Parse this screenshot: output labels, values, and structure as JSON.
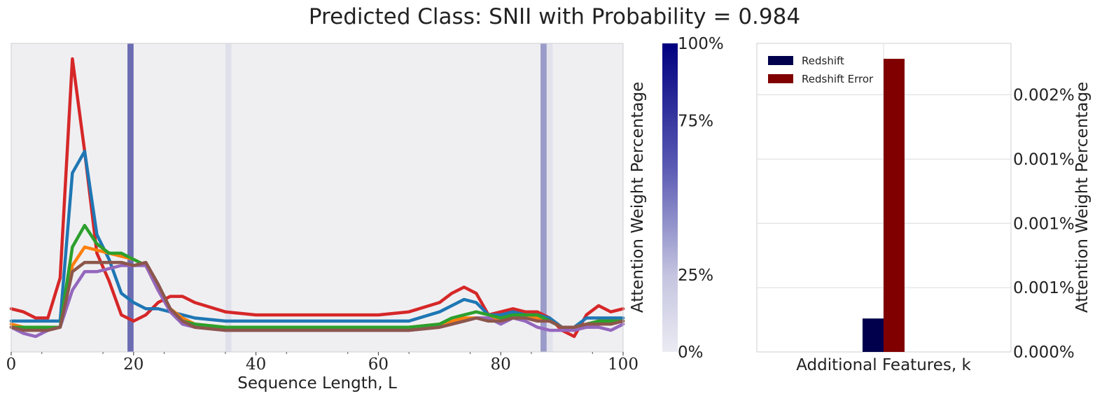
{
  "title": "Predicted Class: SNII with Probability = 0.984",
  "chart_data": [
    {
      "type": "line",
      "xlabel": "Sequence Length, L",
      "ylabel": "",
      "xlim": [
        0,
        100
      ],
      "ylim": [
        0,
        1
      ],
      "x_ticks": [
        "0",
        "20",
        "40",
        "60",
        "80",
        "100"
      ],
      "background": "#efeff2",
      "attention_columns": [
        {
          "x": 19.5,
          "weight": 0.55
        },
        {
          "x": 35.5,
          "weight": 0.06
        },
        {
          "x": 87.0,
          "weight": 0.35
        },
        {
          "x": 88.0,
          "weight": 0.05
        }
      ],
      "x": [
        0,
        2,
        4,
        6,
        8,
        10,
        12,
        14,
        16,
        18,
        20,
        22,
        24,
        26,
        28,
        30,
        35,
        40,
        50,
        60,
        65,
        70,
        72,
        74,
        76,
        78,
        80,
        82,
        84,
        86,
        88,
        90,
        92,
        94,
        96,
        98,
        100
      ],
      "series": [
        {
          "color": "#d62728",
          "values": [
            0.14,
            0.13,
            0.11,
            0.11,
            0.24,
            0.95,
            0.65,
            0.32,
            0.23,
            0.12,
            0.1,
            0.12,
            0.16,
            0.18,
            0.18,
            0.16,
            0.13,
            0.12,
            0.12,
            0.12,
            0.13,
            0.16,
            0.19,
            0.21,
            0.19,
            0.12,
            0.13,
            0.14,
            0.13,
            0.13,
            0.11,
            0.07,
            0.05,
            0.12,
            0.15,
            0.13,
            0.14
          ]
        },
        {
          "color": "#1f77b4",
          "values": [
            0.1,
            0.1,
            0.1,
            0.1,
            0.1,
            0.58,
            0.65,
            0.38,
            0.3,
            0.19,
            0.16,
            0.14,
            0.14,
            0.13,
            0.12,
            0.11,
            0.1,
            0.1,
            0.1,
            0.1,
            0.1,
            0.13,
            0.15,
            0.17,
            0.16,
            0.12,
            0.12,
            0.13,
            0.12,
            0.12,
            0.11,
            0.08,
            0.08,
            0.11,
            0.11,
            0.11,
            0.11
          ]
        },
        {
          "color": "#ff7f0e",
          "values": [
            0.09,
            0.08,
            0.08,
            0.08,
            0.08,
            0.28,
            0.34,
            0.33,
            0.32,
            0.31,
            0.3,
            0.28,
            0.2,
            0.14,
            0.11,
            0.09,
            0.08,
            0.08,
            0.08,
            0.08,
            0.08,
            0.09,
            0.1,
            0.11,
            0.11,
            0.11,
            0.11,
            0.11,
            0.11,
            0.11,
            0.1,
            0.08,
            0.08,
            0.09,
            0.1,
            0.1,
            0.1
          ]
        },
        {
          "color": "#2ca02c",
          "values": [
            0.08,
            0.08,
            0.08,
            0.08,
            0.08,
            0.34,
            0.41,
            0.35,
            0.32,
            0.32,
            0.3,
            0.28,
            0.21,
            0.14,
            0.1,
            0.09,
            0.08,
            0.08,
            0.08,
            0.08,
            0.08,
            0.09,
            0.11,
            0.12,
            0.13,
            0.12,
            0.11,
            0.12,
            0.12,
            0.12,
            0.1,
            0.08,
            0.07,
            0.09,
            0.1,
            0.1,
            0.1
          ]
        },
        {
          "color": "#9467bd",
          "values": [
            0.08,
            0.06,
            0.05,
            0.07,
            0.08,
            0.2,
            0.26,
            0.26,
            0.27,
            0.28,
            0.28,
            0.28,
            0.2,
            0.13,
            0.09,
            0.08,
            0.07,
            0.07,
            0.07,
            0.07,
            0.07,
            0.08,
            0.09,
            0.1,
            0.11,
            0.11,
            0.09,
            0.11,
            0.1,
            0.08,
            0.07,
            0.07,
            0.07,
            0.08,
            0.08,
            0.07,
            0.09
          ]
        },
        {
          "color": "#8c564b",
          "values": [
            0.08,
            0.07,
            0.07,
            0.07,
            0.08,
            0.26,
            0.29,
            0.29,
            0.29,
            0.29,
            0.28,
            0.29,
            0.22,
            0.14,
            0.1,
            0.08,
            0.07,
            0.07,
            0.07,
            0.07,
            0.07,
            0.08,
            0.09,
            0.1,
            0.11,
            0.1,
            0.1,
            0.11,
            0.11,
            0.1,
            0.1,
            0.08,
            0.08,
            0.09,
            0.09,
            0.09,
            0.1
          ]
        }
      ]
    },
    {
      "type": "colorbar",
      "label": "Attention Weight Percentage",
      "ticks": [
        "0%",
        "25%",
        "75%",
        "100%"
      ],
      "tick_fractions": [
        0,
        0.25,
        0.75,
        1.0
      ],
      "colors": [
        "#ebebf3",
        "#000080"
      ]
    },
    {
      "type": "bar",
      "xlabel": "Additional Features, k",
      "ylabel": "Attention Weight Percentage",
      "y_ticks": [
        "0.000%",
        "0.001%",
        "0.001%",
        "0.001%",
        "0.002%"
      ],
      "y_tick_values": [
        0,
        0.0005,
        0.001,
        0.0015,
        0.002
      ],
      "ylim": [
        0,
        0.0024
      ],
      "series": [
        {
          "name": "Redshift",
          "value": 0.00026,
          "color": "#00004d"
        },
        {
          "name": "Redshift Error",
          "value": 0.00228,
          "color": "#800000"
        }
      ],
      "legend": "top-left"
    }
  ]
}
